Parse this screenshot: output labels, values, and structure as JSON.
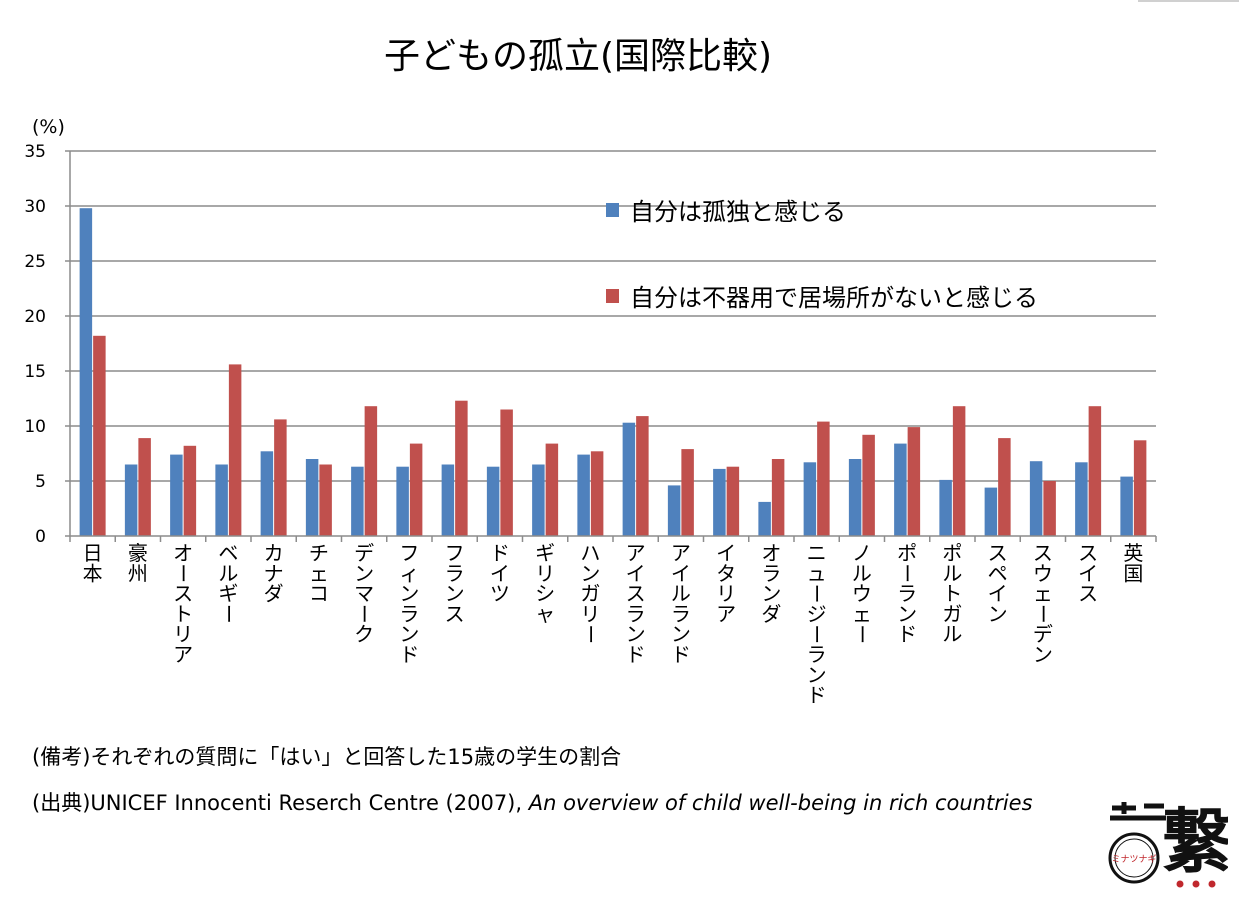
{
  "title": "子どもの孤立(国際比較)",
  "footnotes": {
    "note": "(備考)それぞれの質問に「はい」と回答した15歳の学生の割合",
    "source_prefix": "(出典)UNICEF Innocenti Reserch Centre (2007), ",
    "source_title": "An overview of child well-being in rich countries"
  },
  "logo": {
    "main_glyph": "繋",
    "badge_text": "ミナツナギ",
    "icon": "minatsunagi-logo-icon"
  },
  "chart_data": {
    "type": "bar",
    "title": "子どもの孤立(国際比較)",
    "ylabel": "(%)",
    "xlabel": "",
    "ylim": [
      0,
      35
    ],
    "yticks": [
      0,
      5,
      10,
      15,
      20,
      25,
      30,
      35
    ],
    "grid": true,
    "legend_position": "top-right",
    "categories": [
      "日本",
      "豪州",
      "オーストリア",
      "ベルギー",
      "カナダ",
      "チェコ",
      "デンマーク",
      "フィンランド",
      "フランス",
      "ドイツ",
      "ギリシャ",
      "ハンガリー",
      "アイスランド",
      "アイルランド",
      "イタリア",
      "オランダ",
      "ニュージーランド",
      "ノルウェー",
      "ポーランド",
      "ポルトガル",
      "スペイン",
      "スウェーデン",
      "スイス",
      "英国"
    ],
    "series": [
      {
        "name": "自分は孤独と感じる",
        "color": "#4f81bd",
        "values": [
          29.8,
          6.5,
          7.4,
          6.5,
          7.7,
          7.0,
          6.3,
          6.3,
          6.5,
          6.3,
          6.5,
          7.4,
          10.3,
          4.6,
          6.1,
          3.1,
          6.7,
          7.0,
          8.4,
          5.1,
          4.4,
          6.8,
          6.7,
          5.4
        ]
      },
      {
        "name": "自分は不器用で居場所がないと感じる",
        "color": "#c0504d",
        "values": [
          18.2,
          8.9,
          8.2,
          15.6,
          10.6,
          6.5,
          11.8,
          8.4,
          12.3,
          11.5,
          8.4,
          7.7,
          10.9,
          7.9,
          6.3,
          7.0,
          10.4,
          9.2,
          9.9,
          11.8,
          8.9,
          5.0,
          11.8,
          8.7
        ]
      }
    ]
  }
}
